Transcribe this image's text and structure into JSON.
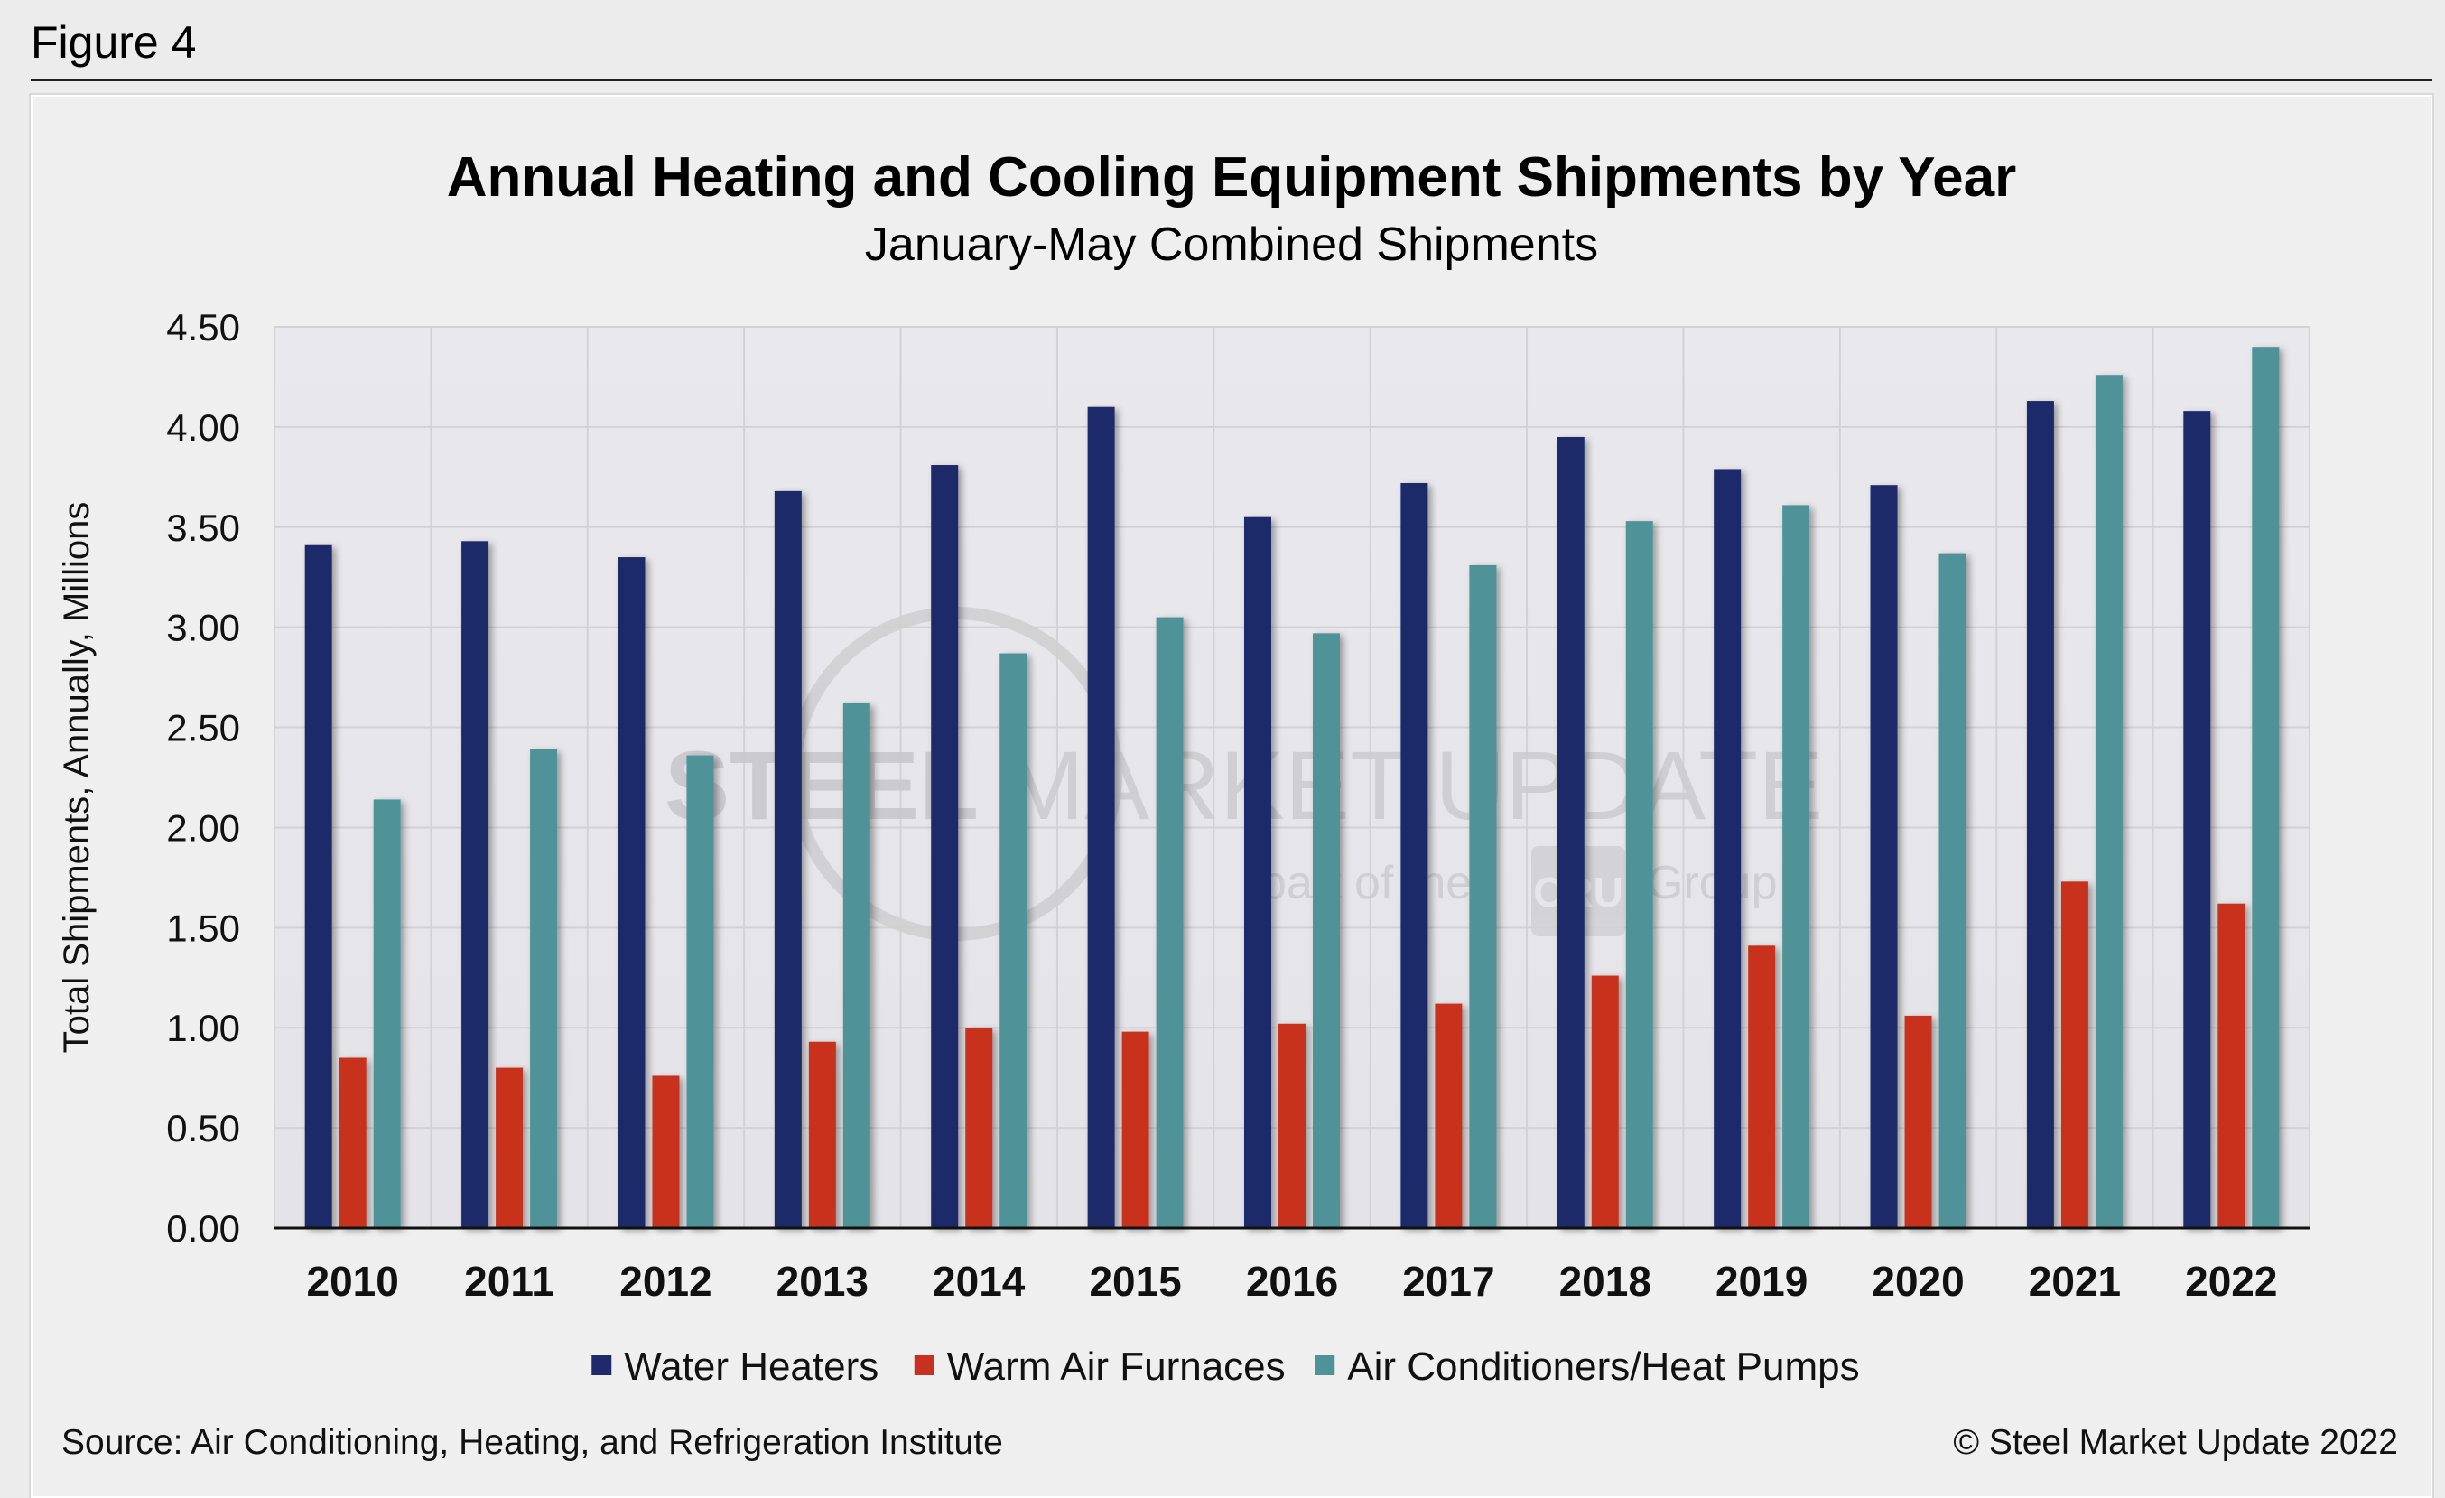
{
  "figure_label": "Figure 4",
  "source": "Source: Air Conditioning, Heating, and Refrigeration Institute",
  "copyright": "© Steel Market Update 2022",
  "watermark": {
    "brand_bold": "STEEL",
    "brand_rest": "MARKET UPDATE",
    "tagline_pre": "part of the",
    "tagline_logo": "CRU",
    "tagline_post": "Group"
  },
  "colors": {
    "Water Heaters": "#1f2a6b",
    "Warm Air Furnaces": "#c8311f",
    "Air Conditioners/Heat Pumps": "#4f9399"
  },
  "chart_data": {
    "type": "bar",
    "title": "Annual Heating and Cooling Equipment Shipments by Year",
    "subtitle": "January-May Combined Shipments",
    "xlabel": "",
    "ylabel": "Total Shipments, Annually, Millions",
    "ylim": [
      0,
      4.5
    ],
    "yticks": [
      "0.00",
      "0.50",
      "1.00",
      "1.50",
      "2.00",
      "2.50",
      "3.00",
      "3.50",
      "4.00",
      "4.50"
    ],
    "grid": true,
    "legend_position": "bottom",
    "categories": [
      "2010",
      "2011",
      "2012",
      "2013",
      "2014",
      "2015",
      "2016",
      "2017",
      "2018",
      "2019",
      "2020",
      "2021",
      "2022"
    ],
    "series": [
      {
        "name": "Water Heaters",
        "values": [
          3.41,
          3.43,
          3.35,
          3.68,
          3.81,
          4.1,
          3.55,
          3.72,
          3.95,
          3.79,
          3.71,
          4.13,
          4.08
        ]
      },
      {
        "name": "Warm Air Furnaces",
        "values": [
          0.85,
          0.8,
          0.76,
          0.93,
          1.0,
          0.98,
          1.02,
          1.12,
          1.26,
          1.41,
          1.06,
          1.73,
          1.62
        ]
      },
      {
        "name": "Air Conditioners/Heat Pumps",
        "values": [
          2.14,
          2.39,
          2.36,
          2.62,
          2.87,
          3.05,
          2.97,
          3.31,
          3.53,
          3.61,
          3.37,
          4.26,
          4.4
        ]
      }
    ]
  }
}
